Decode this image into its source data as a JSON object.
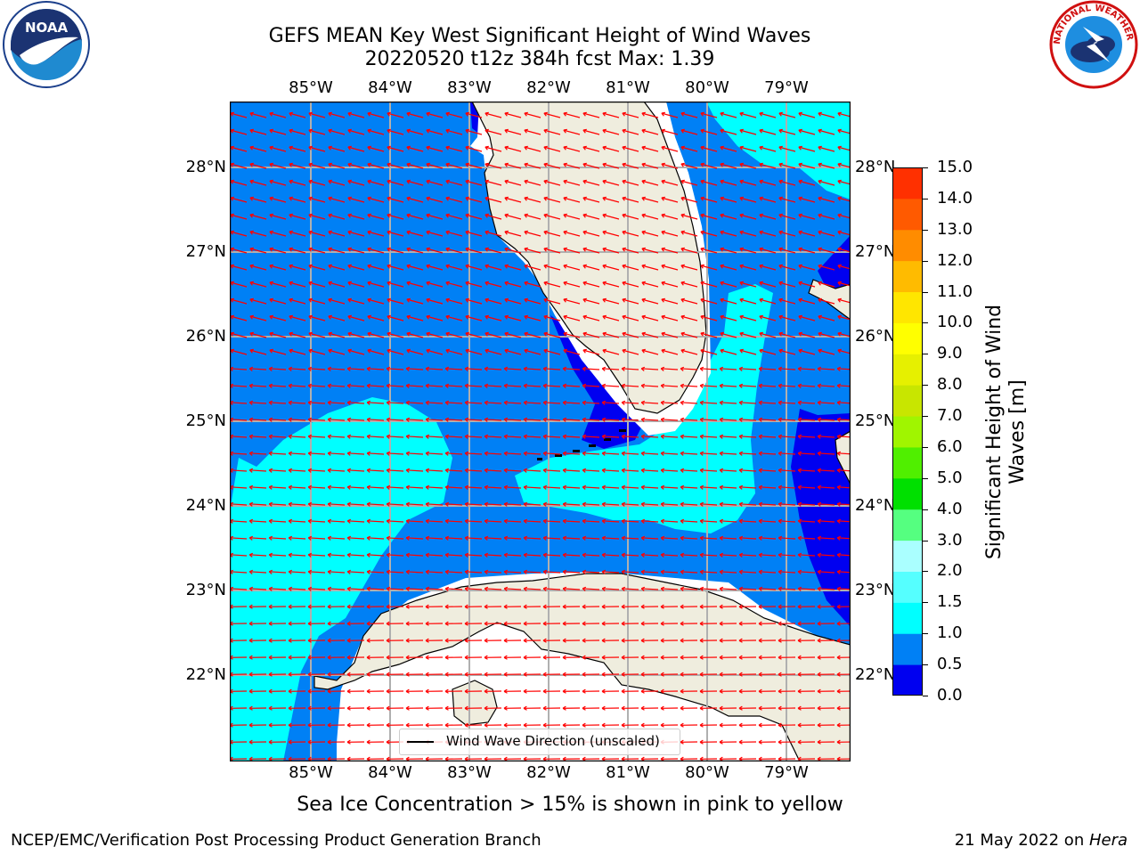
{
  "header": {
    "title_line1": "GEFS MEAN Key West Significant Height of Wind Waves",
    "title_line2": "20220520 t12z 384h fcst   Max: 1.39"
  },
  "logos": {
    "left": "NOAA",
    "right": "NATIONAL WEATHER SERVICE"
  },
  "map": {
    "lon_labels": [
      "85°W",
      "84°W",
      "83°W",
      "82°W",
      "81°W",
      "80°W",
      "79°W"
    ],
    "lat_labels": [
      "28°N",
      "27°N",
      "26°N",
      "25°N",
      "24°N",
      "23°N",
      "22°N"
    ],
    "legend_label": "Wind Wave Direction (unscaled)",
    "colors": {
      "land": "#efedde",
      "level_0_0.5": "#0000f0",
      "level_0.5_1.0": "#0080f5",
      "level_1.0_1.5": "#00ffff",
      "arrow": "#ff0000",
      "grid": "#b0b0b0"
    }
  },
  "colorbar": {
    "label": "Significant Height of Wind Waves [m]",
    "ticks": [
      "0.0",
      "0.5",
      "1.0",
      "1.5",
      "2.0",
      "3.0",
      "4.0",
      "5.0",
      "6.0",
      "7.0",
      "8.0",
      "9.0",
      "10.0",
      "11.0",
      "12.0",
      "13.0",
      "14.0",
      "15.0"
    ],
    "colors": [
      "#0000f0",
      "#0080f5",
      "#00ffff",
      "#55ffff",
      "#aaffff",
      "#55ff80",
      "#00e000",
      "#50ef00",
      "#a0f500",
      "#c8e600",
      "#e6f000",
      "#ffff00",
      "#ffe600",
      "#ffbb00",
      "#ff8c00",
      "#ff5a00",
      "#ff3000",
      "#ff0000"
    ]
  },
  "subtitle": "Sea Ice Concentration > 15% is shown in pink to yellow",
  "footer": {
    "left": "NCEP/EMC/Verification Post Processing Product Generation Branch",
    "right_date": "21 May 2022 on ",
    "right_host": "Hera"
  }
}
